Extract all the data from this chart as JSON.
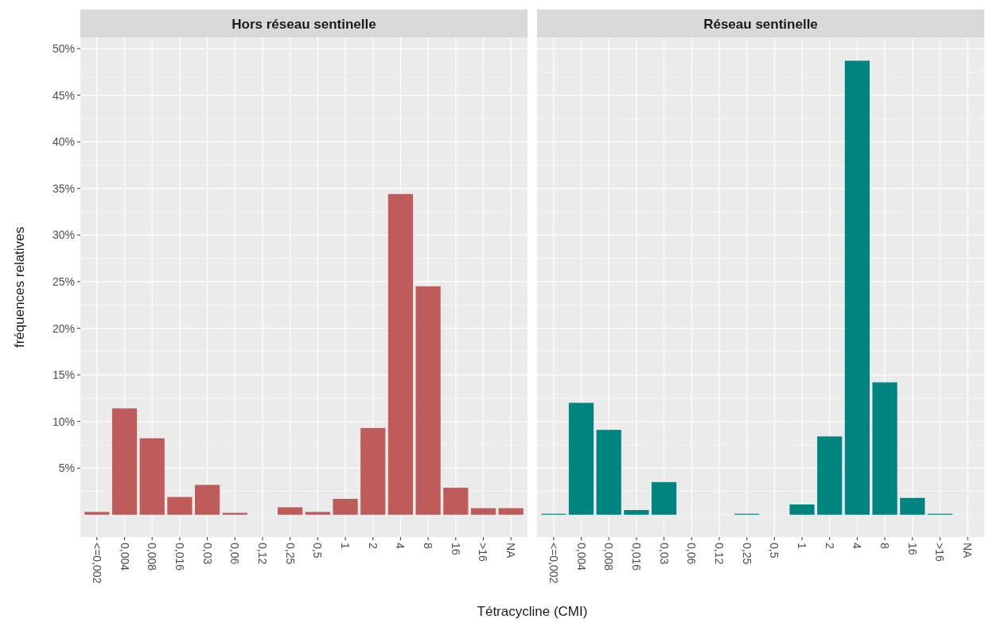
{
  "chart_data": [
    {
      "type": "bar",
      "title": "Hors réseau sentinelle",
      "xlabel": "Tétracycline (CMI)",
      "ylabel": "fréquences relatives",
      "categories": [
        "<=0,002",
        "0,004",
        "0,008",
        "0,016",
        "0,03",
        "0,06",
        "0,12",
        "0,25",
        "0,5",
        "1",
        "2",
        "4",
        "8",
        "16",
        ">16",
        "NA"
      ],
      "series": [
        {
          "color": "#bf5b5b",
          "values": [
            0.3,
            11.4,
            8.2,
            1.9,
            3.2,
            0.2,
            null,
            0.8,
            0.3,
            1.7,
            9.3,
            34.4,
            24.5,
            2.9,
            0.7,
            0.7
          ]
        }
      ],
      "ylim": [
        -2.4,
        51.2
      ],
      "yticks": [
        {
          "value": 5,
          "label": "5%"
        },
        {
          "value": 10,
          "label": "10%"
        },
        {
          "value": 15,
          "label": "15%"
        },
        {
          "value": 20,
          "label": "20%"
        },
        {
          "value": 25,
          "label": "25%"
        },
        {
          "value": 30,
          "label": "30%"
        },
        {
          "value": 35,
          "label": "35%"
        },
        {
          "value": 40,
          "label": "40%"
        },
        {
          "value": 45,
          "label": "45%"
        },
        {
          "value": 50,
          "label": "50%"
        }
      ],
      "grid": true
    },
    {
      "type": "bar",
      "title": "Réseau sentinelle",
      "categories": [
        "<=0,002",
        "0,004",
        "0,008",
        "0,016",
        "0,03",
        "0,06",
        "0,12",
        "0,25",
        "0,5",
        "1",
        "2",
        "4",
        "8",
        "16",
        ">16",
        "NA"
      ],
      "series": [
        {
          "color": "#008480",
          "values": [
            0.1,
            12.0,
            9.1,
            0.5,
            3.5,
            null,
            null,
            0.1,
            null,
            1.1,
            8.4,
            48.7,
            14.2,
            1.8,
            0.1,
            null
          ]
        }
      ],
      "ylim": [
        -2.4,
        51.2
      ],
      "yticks": [
        5,
        10,
        15,
        20,
        25,
        30,
        35,
        40,
        45,
        50
      ],
      "grid": true,
      "tick_labels": "x"
    }
  ]
}
